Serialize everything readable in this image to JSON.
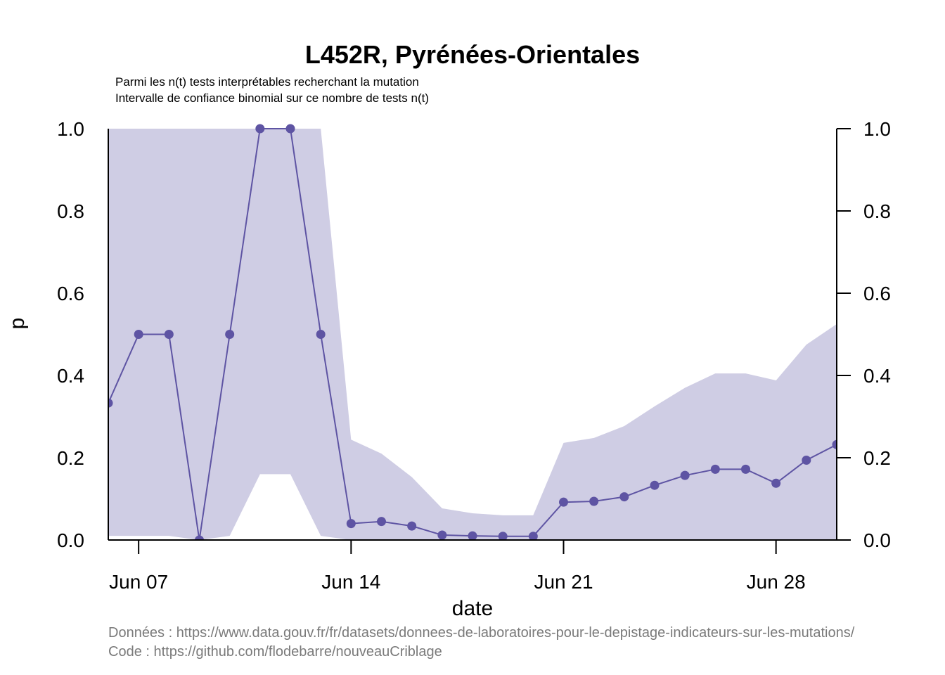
{
  "chart_data": {
    "type": "line",
    "title": "L452R, Pyrénées-Orientales",
    "subtitle_lines": [
      "Parmi les n(t) tests interprétables recherchant la mutation",
      "Intervalle de confiance binomial sur ce nombre de tests n(t)"
    ],
    "xlabel": "date",
    "ylabel": "p",
    "x_tick_labels": [
      "Jun 07",
      "Jun 14",
      "Jun 21",
      "Jun 28"
    ],
    "x_tick_days": [
      7,
      14,
      21,
      28
    ],
    "y_ticks": [
      0.0,
      0.2,
      0.4,
      0.6,
      0.8,
      1.0
    ],
    "y_tick_labels": [
      "0.0",
      "0.2",
      "0.4",
      "0.6",
      "0.8",
      "1.0"
    ],
    "xlim_days": [
      6,
      30
    ],
    "ylim": [
      0,
      1
    ],
    "line_color": "#5e54a3",
    "band_color": "#cfcde4",
    "series": [
      {
        "x_days": [
          6,
          7,
          8,
          9,
          10,
          11,
          12,
          13,
          14,
          15,
          16,
          17,
          18,
          19,
          20,
          21,
          22,
          23,
          24,
          25,
          26,
          27,
          28,
          29,
          30
        ],
        "values": [
          0.333,
          0.5,
          0.5,
          0.0,
          0.5,
          1.0,
          1.0,
          0.5,
          0.04,
          0.045,
          0.034,
          0.012,
          0.01,
          0.009,
          0.009,
          0.092,
          0.094,
          0.105,
          0.133,
          0.157,
          0.172,
          0.172,
          0.138,
          0.194,
          0.232
        ],
        "ci_lower": [
          0.01,
          0.01,
          0.01,
          0.0,
          0.01,
          0.16,
          0.16,
          0.01,
          0.0,
          0.0,
          0.0,
          0.0,
          0.0,
          0.0,
          0.0,
          0.0,
          0.0,
          0.0,
          0.0,
          0.0,
          0.0,
          0.0,
          0.0,
          0.0,
          0.0
        ],
        "ci_upper": [
          1.0,
          1.0,
          1.0,
          1.0,
          1.0,
          1.0,
          1.0,
          1.0,
          0.244,
          0.21,
          0.153,
          0.077,
          0.065,
          0.06,
          0.06,
          0.236,
          0.248,
          0.277,
          0.325,
          0.37,
          0.405,
          0.405,
          0.388,
          0.475,
          0.525
        ]
      }
    ],
    "captions": [
      "Données : https://www.data.gouv.fr/fr/datasets/donnees-de-laboratoires-pour-le-depistage-indicateurs-sur-les-mutations/",
      "Code : https://github.com/flodebarre/nouveauCriblage"
    ]
  }
}
